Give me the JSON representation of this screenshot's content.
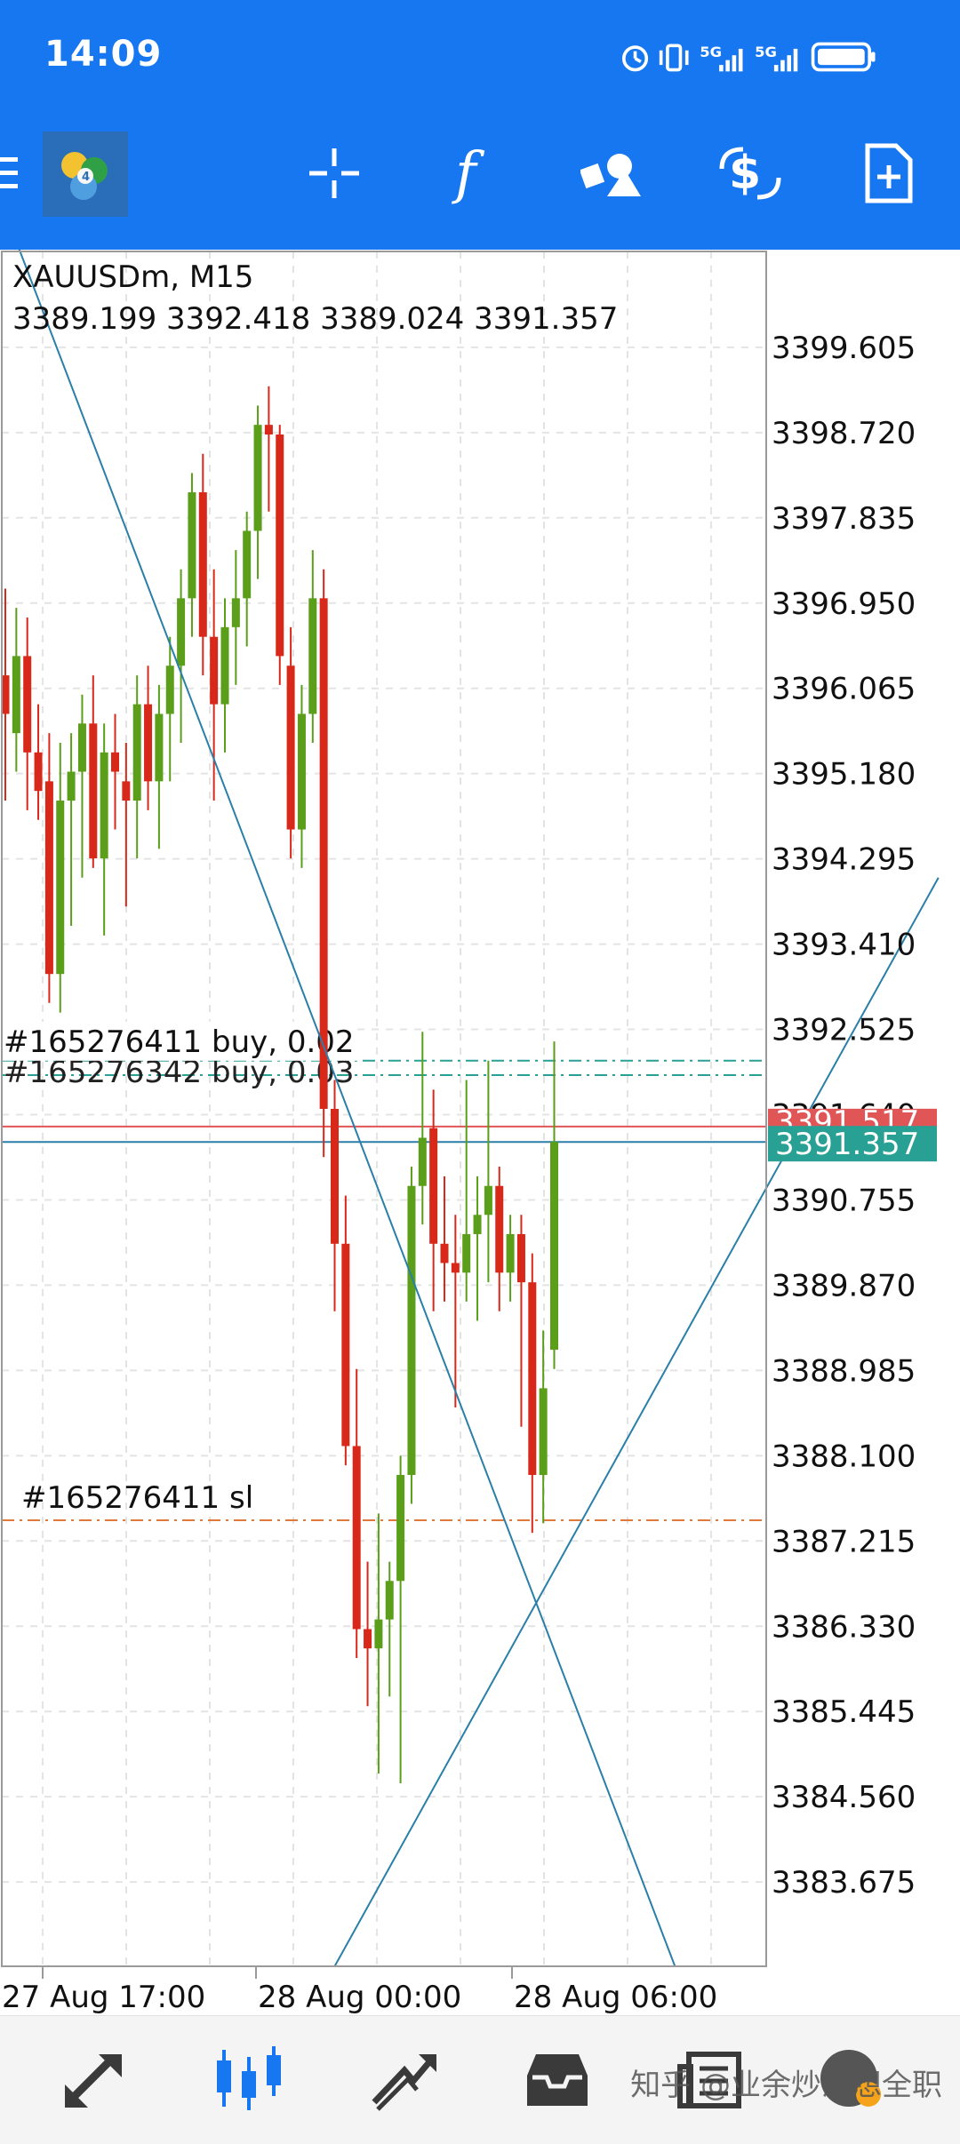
{
  "status_bar": {
    "time": "14:09",
    "icons": [
      "alarm-icon",
      "vibrate-icon",
      "signal-5g-icon",
      "signal-5g-icon",
      "battery-icon"
    ],
    "net1": "5G",
    "net2": "5G"
  },
  "toolbar": {
    "icons": [
      "menu-icon",
      "metatrader-logo-icon",
      "crosshair-icon",
      "indicators-icon",
      "objects-icon",
      "trade-icon",
      "new-order-icon"
    ]
  },
  "chart": {
    "symbol_line": "XAUUSDm, M15",
    "ohlc_line": "3389.199 3392.418 3389.024 3391.357",
    "order_label_1": "#165276411 buy, 0.02",
    "order_label_2": "#165276342 buy, 0.03",
    "sl_label": "#165276411 sl",
    "bid_label": "3391.517",
    "ask_label": "3391.357",
    "colors": {
      "bull": "#5a9e1a",
      "bear": "#d8281a",
      "line": "#2a7fa8",
      "sl": "#e07a3c",
      "bid": "#e05555",
      "ask": "#29a094"
    }
  },
  "chart_data": {
    "type": "candlestick",
    "symbol": "XAUUSDm",
    "timeframe": "M15",
    "y_ticks": [
      "3399.605",
      "3398.720",
      "3397.835",
      "3396.950",
      "3396.065",
      "3395.180",
      "3394.295",
      "3393.410",
      "3392.525",
      "3391.640",
      "3390.755",
      "3389.870",
      "3388.985",
      "3388.100",
      "3387.215",
      "3386.330",
      "3385.445",
      "3384.560",
      "3383.675"
    ],
    "x_labels": [
      "27 Aug 17:00",
      "28 Aug 00:00",
      "28 Aug 06:00"
    ],
    "ylim": [
      3382.8,
      3400.6
    ],
    "candles": [
      {
        "o": 3396.2,
        "h": 3397.1,
        "l": 3394.9,
        "c": 3395.8
      },
      {
        "o": 3395.6,
        "h": 3396.9,
        "l": 3395.2,
        "c": 3396.4
      },
      {
        "o": 3396.4,
        "h": 3396.8,
        "l": 3394.8,
        "c": 3395.4
      },
      {
        "o": 3395.4,
        "h": 3395.9,
        "l": 3394.7,
        "c": 3395.0
      },
      {
        "o": 3395.1,
        "h": 3395.6,
        "l": 3392.8,
        "c": 3393.1
      },
      {
        "o": 3393.1,
        "h": 3395.5,
        "l": 3392.7,
        "c": 3394.9
      },
      {
        "o": 3394.9,
        "h": 3395.6,
        "l": 3393.6,
        "c": 3395.2
      },
      {
        "o": 3395.2,
        "h": 3396.0,
        "l": 3394.1,
        "c": 3395.7
      },
      {
        "o": 3395.7,
        "h": 3396.2,
        "l": 3394.2,
        "c": 3394.3
      },
      {
        "o": 3394.3,
        "h": 3395.7,
        "l": 3393.5,
        "c": 3395.4
      },
      {
        "o": 3395.4,
        "h": 3395.8,
        "l": 3394.6,
        "c": 3395.2
      },
      {
        "o": 3395.1,
        "h": 3395.5,
        "l": 3393.8,
        "c": 3394.9
      },
      {
        "o": 3394.9,
        "h": 3396.2,
        "l": 3394.3,
        "c": 3395.9
      },
      {
        "o": 3395.9,
        "h": 3396.3,
        "l": 3394.8,
        "c": 3395.1
      },
      {
        "o": 3395.1,
        "h": 3396.1,
        "l": 3394.4,
        "c": 3395.8
      },
      {
        "o": 3395.8,
        "h": 3396.6,
        "l": 3395.1,
        "c": 3396.3
      },
      {
        "o": 3396.3,
        "h": 3397.3,
        "l": 3395.5,
        "c": 3397.0
      },
      {
        "o": 3397.0,
        "h": 3398.3,
        "l": 3396.6,
        "c": 3398.1
      },
      {
        "o": 3398.1,
        "h": 3398.5,
        "l": 3396.2,
        "c": 3396.6
      },
      {
        "o": 3396.6,
        "h": 3397.3,
        "l": 3394.9,
        "c": 3395.9
      },
      {
        "o": 3395.9,
        "h": 3397.0,
        "l": 3395.4,
        "c": 3396.7
      },
      {
        "o": 3396.7,
        "h": 3397.5,
        "l": 3396.1,
        "c": 3397.0
      },
      {
        "o": 3397.0,
        "h": 3397.9,
        "l": 3396.5,
        "c": 3397.7
      },
      {
        "o": 3397.7,
        "h": 3399.0,
        "l": 3397.2,
        "c": 3398.8
      },
      {
        "o": 3398.8,
        "h": 3399.2,
        "l": 3397.9,
        "c": 3398.7
      },
      {
        "o": 3398.7,
        "h": 3398.8,
        "l": 3396.1,
        "c": 3396.4
      },
      {
        "o": 3396.3,
        "h": 3396.7,
        "l": 3394.3,
        "c": 3394.6
      },
      {
        "o": 3394.6,
        "h": 3396.1,
        "l": 3394.2,
        "c": 3395.8
      },
      {
        "o": 3395.8,
        "h": 3397.5,
        "l": 3395.5,
        "c": 3397.0
      },
      {
        "o": 3397.0,
        "h": 3397.3,
        "l": 3391.2,
        "c": 3391.7
      },
      {
        "o": 3391.7,
        "h": 3392.0,
        "l": 3389.6,
        "c": 3390.3
      },
      {
        "o": 3390.3,
        "h": 3390.8,
        "l": 3388.0,
        "c": 3388.2
      },
      {
        "o": 3388.2,
        "h": 3389.0,
        "l": 3386.0,
        "c": 3386.3
      },
      {
        "o": 3386.3,
        "h": 3387.0,
        "l": 3385.5,
        "c": 3386.1
      },
      {
        "o": 3386.1,
        "h": 3387.5,
        "l": 3384.8,
        "c": 3386.4
      },
      {
        "o": 3386.4,
        "h": 3387.0,
        "l": 3385.6,
        "c": 3386.8
      },
      {
        "o": 3386.8,
        "h": 3388.1,
        "l": 3384.7,
        "c": 3387.9
      },
      {
        "o": 3387.9,
        "h": 3391.1,
        "l": 3387.6,
        "c": 3390.9
      },
      {
        "o": 3390.9,
        "h": 3392.5,
        "l": 3390.5,
        "c": 3391.4
      },
      {
        "o": 3391.5,
        "h": 3391.9,
        "l": 3389.6,
        "c": 3390.3
      },
      {
        "o": 3390.3,
        "h": 3391.0,
        "l": 3389.7,
        "c": 3390.1
      },
      {
        "o": 3390.1,
        "h": 3390.6,
        "l": 3388.6,
        "c": 3390.0
      },
      {
        "o": 3390.0,
        "h": 3392.0,
        "l": 3389.7,
        "c": 3390.4
      },
      {
        "o": 3390.4,
        "h": 3391.0,
        "l": 3389.5,
        "c": 3390.6
      },
      {
        "o": 3390.6,
        "h": 3392.2,
        "l": 3389.9,
        "c": 3390.9
      },
      {
        "o": 3390.9,
        "h": 3391.1,
        "l": 3389.6,
        "c": 3390.0
      },
      {
        "o": 3390.0,
        "h": 3390.6,
        "l": 3389.7,
        "c": 3390.4
      },
      {
        "o": 3390.4,
        "h": 3390.6,
        "l": 3388.4,
        "c": 3389.9
      },
      {
        "o": 3389.9,
        "h": 3390.2,
        "l": 3387.3,
        "c": 3387.9
      },
      {
        "o": 3387.9,
        "h": 3389.4,
        "l": 3387.4,
        "c": 3388.8
      },
      {
        "o": 3389.2,
        "h": 3392.4,
        "l": 3389.0,
        "c": 3391.357
      }
    ],
    "levels": {
      "order_1": 3392.2,
      "order_2": 3392.05,
      "bid": 3391.517,
      "ask": 3391.357,
      "stop_loss": 3387.43
    },
    "trendlines": [
      {
        "p1": [
          0,
          3401.0
        ],
        "p2": [
          61,
          3382.8
        ]
      },
      {
        "p1": [
          30,
          3382.8
        ],
        "p2": [
          85,
          3394.1
        ]
      }
    ],
    "grid": true
  },
  "bottom_nav": {
    "icons": [
      "quotes-icon",
      "chart-icon",
      "trade-icon",
      "history-icon",
      "news-icon",
      "messages-icon"
    ],
    "watermark": "知乎 @业余炒汇想全职"
  }
}
